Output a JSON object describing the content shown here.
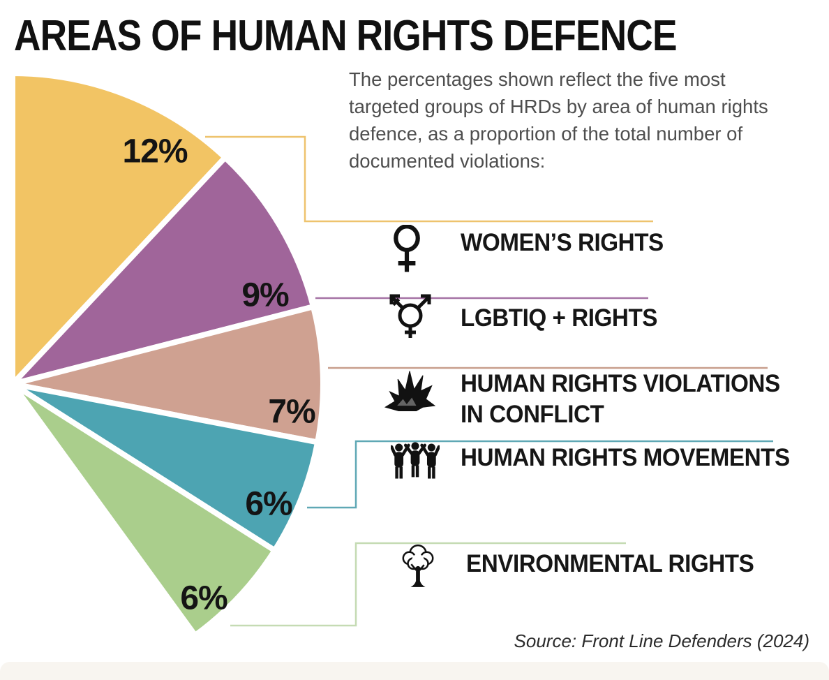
{
  "title": "AREAS OF HUMAN RIGHTS DEFENCE",
  "description": "The percentages shown reflect the five most\ntargeted groups of HRDs by area of human rights\ndefence, as a proportion of the total number of\ndocumented violations:",
  "source": "Source: Front Line Defenders (2024)",
  "chart_data": {
    "type": "pie",
    "title": "AREAS OF HUMAN RIGHTS DEFENCE",
    "unit": "percent of total documented violations",
    "start_angle_from_north_deg": 0,
    "sweep": "clockwise",
    "degrees_per_percent": 3.6,
    "slices": [
      {
        "label": "Women's rights",
        "value": 12,
        "pct_label": "12%",
        "color": "#F2C464",
        "line_color": "#EEC36E"
      },
      {
        "label": "LGBTIQ + rights",
        "value": 9,
        "pct_label": "9%",
        "color": "#A0659A",
        "line_color": "#A573A5"
      },
      {
        "label": "Human rights violations in conflict",
        "value": 7,
        "pct_label": "7%",
        "color": "#CFA191",
        "line_color": "#C79E8C"
      },
      {
        "label": "Human rights movements",
        "value": 6,
        "pct_label": "6%",
        "color": "#4DA4B2",
        "line_color": "#5FA8B5"
      },
      {
        "label": "Environmental rights",
        "value": 6,
        "pct_label": "6%",
        "color": "#AACE8C",
        "line_color": "#C5DBB3"
      }
    ],
    "legend_position": "right"
  },
  "legend": {
    "items": [
      {
        "label": "WOMEN’S RIGHTS",
        "icon": "female-icon"
      },
      {
        "label": "LGBTIQ + RIGHTS",
        "icon": "transgender-icon"
      },
      {
        "label": "HUMAN RIGHTS VIOLATIONS\nIN CONFLICT",
        "icon": "explosion-icon"
      },
      {
        "label": "HUMAN RIGHTS MOVEMENTS",
        "icon": "people-icon"
      },
      {
        "label": "ENVIRONMENTAL RIGHTS",
        "icon": "tree-icon"
      }
    ]
  },
  "colors": {
    "background": "#FFFFFF",
    "footer_bar": "#F8F5F0",
    "heading_text": "#111111",
    "body_text": "#4E4E4E"
  }
}
